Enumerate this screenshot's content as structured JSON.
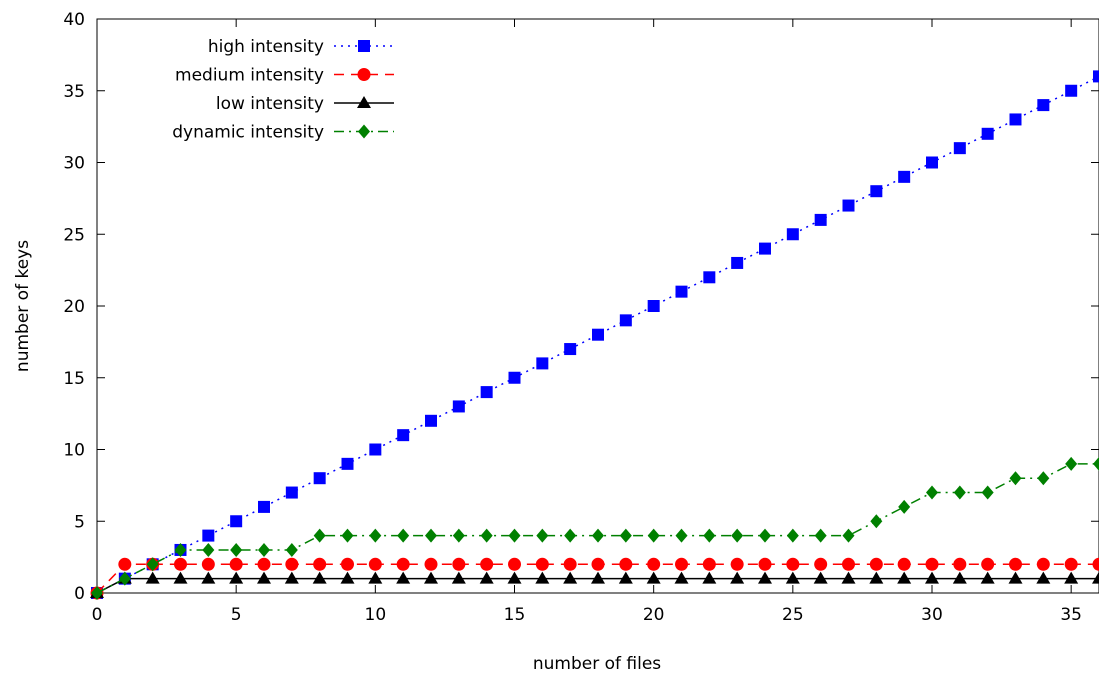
{
  "chart_data": {
    "type": "line",
    "title": "",
    "xlabel": "number of files",
    "ylabel": "number of keys",
    "xlim": [
      0,
      36
    ],
    "ylim": [
      0,
      40
    ],
    "xticks": [
      0,
      5,
      10,
      15,
      20,
      25,
      30,
      35
    ],
    "yticks": [
      0,
      5,
      10,
      15,
      20,
      25,
      30,
      35,
      40
    ],
    "legend_position": "top-left",
    "grid": false,
    "series": [
      {
        "name": "high intensity",
        "color": "#0000ff",
        "marker": "square",
        "dash": "dotted",
        "x": [
          0,
          1,
          2,
          3,
          4,
          5,
          6,
          7,
          8,
          9,
          10,
          11,
          12,
          13,
          14,
          15,
          16,
          17,
          18,
          19,
          20,
          21,
          22,
          23,
          24,
          25,
          26,
          27,
          28,
          29,
          30,
          31,
          32,
          33,
          34,
          35,
          36
        ],
        "values": [
          0,
          1,
          2,
          3,
          4,
          5,
          6,
          7,
          8,
          9,
          10,
          11,
          12,
          13,
          14,
          15,
          16,
          17,
          18,
          19,
          20,
          21,
          22,
          23,
          24,
          25,
          26,
          27,
          28,
          29,
          30,
          31,
          32,
          33,
          34,
          35,
          36
        ]
      },
      {
        "name": "medium intensity",
        "color": "#ff0000",
        "marker": "circle",
        "dash": "dashed",
        "x": [
          0,
          1,
          2,
          3,
          4,
          5,
          6,
          7,
          8,
          9,
          10,
          11,
          12,
          13,
          14,
          15,
          16,
          17,
          18,
          19,
          20,
          21,
          22,
          23,
          24,
          25,
          26,
          27,
          28,
          29,
          30,
          31,
          32,
          33,
          34,
          35,
          36
        ],
        "values": [
          0,
          2,
          2,
          2,
          2,
          2,
          2,
          2,
          2,
          2,
          2,
          2,
          2,
          2,
          2,
          2,
          2,
          2,
          2,
          2,
          2,
          2,
          2,
          2,
          2,
          2,
          2,
          2,
          2,
          2,
          2,
          2,
          2,
          2,
          2,
          2,
          2
        ]
      },
      {
        "name": "low intensity",
        "color": "#000000",
        "marker": "triangle",
        "dash": "solid",
        "x": [
          0,
          1,
          2,
          3,
          4,
          5,
          6,
          7,
          8,
          9,
          10,
          11,
          12,
          13,
          14,
          15,
          16,
          17,
          18,
          19,
          20,
          21,
          22,
          23,
          24,
          25,
          26,
          27,
          28,
          29,
          30,
          31,
          32,
          33,
          34,
          35,
          36
        ],
        "values": [
          0,
          1,
          1,
          1,
          1,
          1,
          1,
          1,
          1,
          1,
          1,
          1,
          1,
          1,
          1,
          1,
          1,
          1,
          1,
          1,
          1,
          1,
          1,
          1,
          1,
          1,
          1,
          1,
          1,
          1,
          1,
          1,
          1,
          1,
          1,
          1,
          1
        ]
      },
      {
        "name": "dynamic intensity",
        "color": "#008000",
        "marker": "diamond",
        "dash": "dashdot",
        "x": [
          0,
          1,
          2,
          3,
          4,
          5,
          6,
          7,
          8,
          9,
          10,
          11,
          12,
          13,
          14,
          15,
          16,
          17,
          18,
          19,
          20,
          21,
          22,
          23,
          24,
          25,
          26,
          27,
          28,
          29,
          30,
          31,
          32,
          33,
          34,
          35,
          36
        ],
        "values": [
          0,
          1,
          2,
          3,
          3,
          3,
          3,
          3,
          4,
          4,
          4,
          4,
          4,
          4,
          4,
          4,
          4,
          4,
          4,
          4,
          4,
          4,
          4,
          4,
          4,
          4,
          4,
          4,
          5,
          6,
          7,
          7,
          7,
          8,
          8,
          9,
          9
        ]
      }
    ]
  }
}
